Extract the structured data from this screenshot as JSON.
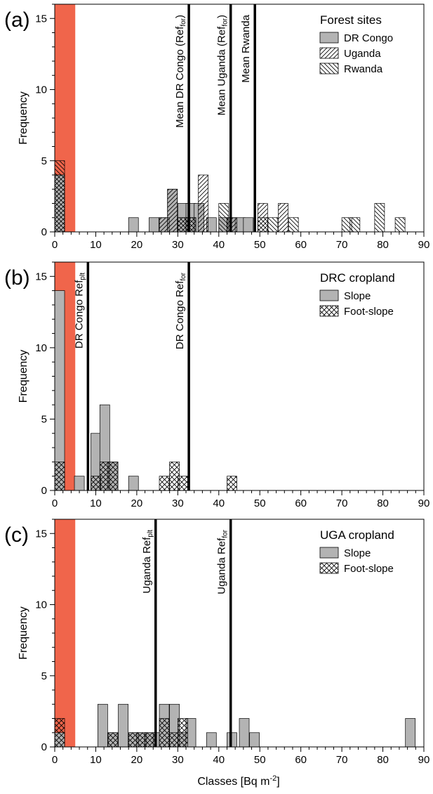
{
  "figure": {
    "xlabel": "Classes [Bq m",
    "xlabel_sup": "-2",
    "xlabel_end": "]"
  },
  "chart_data": [
    {
      "type": "bar",
      "panel_label": "(a)",
      "legend_title": "Forest sites",
      "ylabel": "Frequency",
      "xlim": [
        0,
        90
      ],
      "ylim": [
        0,
        16
      ],
      "xticks": [
        0,
        10,
        20,
        30,
        40,
        50,
        60,
        70,
        80,
        90
      ],
      "yticks": [
        0,
        5,
        10,
        15
      ],
      "bin_width": 2.4,
      "highlight_band": {
        "x0": 0,
        "x1": 5,
        "color": "#f0654b"
      },
      "series": [
        {
          "name": "DR Congo",
          "pattern": "solid",
          "bins": [
            [
              0,
              4
            ],
            [
              18,
              1
            ],
            [
              23,
              1
            ],
            [
              25.5,
              1
            ],
            [
              27.5,
              3
            ],
            [
              30,
              2
            ],
            [
              32,
              2
            ],
            [
              34,
              2
            ],
            [
              37,
              1
            ],
            [
              40,
              1
            ],
            [
              42,
              1
            ],
            [
              44,
              1
            ],
            [
              46,
              1
            ]
          ]
        },
        {
          "name": "Uganda",
          "pattern": "hatch-right",
          "bins": [
            [
              0,
              4
            ],
            [
              25.5,
              1
            ],
            [
              27.5,
              3
            ],
            [
              30,
              1
            ],
            [
              32,
              1
            ],
            [
              35,
              4
            ],
            [
              42,
              1
            ],
            [
              49.5,
              2
            ],
            [
              54.5,
              2
            ]
          ]
        },
        {
          "name": "Rwanda",
          "pattern": "hatch-left",
          "bins": [
            [
              0,
              5
            ],
            [
              30,
              1
            ],
            [
              32,
              1
            ],
            [
              40,
              2
            ],
            [
              49.5,
              1
            ],
            [
              52,
              1
            ],
            [
              57,
              1
            ],
            [
              70,
              1
            ],
            [
              72,
              1
            ],
            [
              78,
              2
            ],
            [
              83,
              1
            ]
          ]
        }
      ],
      "ref_lines": [
        {
          "x": 32.7,
          "label": "Mean DR Congo (Ref",
          "sub": "for",
          "suffix": ")"
        },
        {
          "x": 42.9,
          "label": "Mean Uganda (Ref",
          "sub": "for",
          "suffix": ")"
        },
        {
          "x": 48.8,
          "label": "Mean Rwanda",
          "sub": "",
          "suffix": ""
        }
      ]
    },
    {
      "type": "bar",
      "panel_label": "(b)",
      "legend_title": "DRC cropland",
      "ylabel": "Frequency",
      "xlim": [
        0,
        90
      ],
      "ylim": [
        0,
        16
      ],
      "xticks": [
        0,
        10,
        20,
        30,
        40,
        50,
        60,
        70,
        80,
        90
      ],
      "yticks": [
        0,
        5,
        10,
        15
      ],
      "bin_width": 2.4,
      "highlight_band": {
        "x0": 0,
        "x1": 5,
        "color": "#f0654b"
      },
      "series": [
        {
          "name": "Slope",
          "pattern": "solid",
          "bins": [
            [
              0,
              14
            ],
            [
              4.8,
              1
            ],
            [
              8.8,
              4
            ],
            [
              11,
              6
            ],
            [
              13,
              2
            ],
            [
              18,
              1
            ]
          ]
        },
        {
          "name": "Foot-slope",
          "pattern": "crosshatch",
          "bins": [
            [
              0,
              2
            ],
            [
              8.8,
              1
            ],
            [
              11,
              2
            ],
            [
              13,
              2
            ],
            [
              25.5,
              1
            ],
            [
              28,
              2
            ],
            [
              30,
              1
            ],
            [
              42,
              1
            ]
          ]
        }
      ],
      "ref_lines": [
        {
          "x": 8.1,
          "label": "DR Congo Ref",
          "sub": "plt",
          "suffix": ""
        },
        {
          "x": 32.7,
          "label": "DR Congo Ref",
          "sub": "for",
          "suffix": ""
        }
      ]
    },
    {
      "type": "bar",
      "panel_label": "(c)",
      "legend_title": "UGA cropland",
      "ylabel": "Frequency",
      "xlim": [
        0,
        90
      ],
      "ylim": [
        0,
        16
      ],
      "xticks": [
        0,
        10,
        20,
        30,
        40,
        50,
        60,
        70,
        80,
        90
      ],
      "yticks": [
        0,
        5,
        10,
        15
      ],
      "bin_width": 2.4,
      "highlight_band": {
        "x0": 0,
        "x1": 5,
        "color": "#f0654b"
      },
      "series": [
        {
          "name": "Slope",
          "pattern": "solid",
          "bins": [
            [
              0,
              1
            ],
            [
              10.5,
              3
            ],
            [
              13,
              1
            ],
            [
              15.5,
              3
            ],
            [
              18,
              1
            ],
            [
              20,
              1
            ],
            [
              22,
              1
            ],
            [
              24,
              1
            ],
            [
              25.5,
              3
            ],
            [
              28,
              3
            ],
            [
              30,
              1
            ],
            [
              32,
              2
            ],
            [
              37,
              1
            ],
            [
              42,
              1
            ],
            [
              45,
              2
            ],
            [
              47.5,
              1
            ],
            [
              85.5,
              2
            ]
          ]
        },
        {
          "name": "Foot-slope",
          "pattern": "crosshatch",
          "bins": [
            [
              0,
              2
            ],
            [
              13,
              1
            ],
            [
              18,
              1
            ],
            [
              20,
              1
            ],
            [
              22,
              1
            ],
            [
              25.5,
              2
            ],
            [
              28,
              1
            ],
            [
              30,
              2
            ]
          ]
        }
      ],
      "ref_lines": [
        {
          "x": 24.6,
          "label": "Uganda Ref",
          "sub": "plt",
          "suffix": ""
        },
        {
          "x": 42.9,
          "label": "Uganda Ref",
          "sub": "for",
          "suffix": ""
        }
      ]
    }
  ]
}
